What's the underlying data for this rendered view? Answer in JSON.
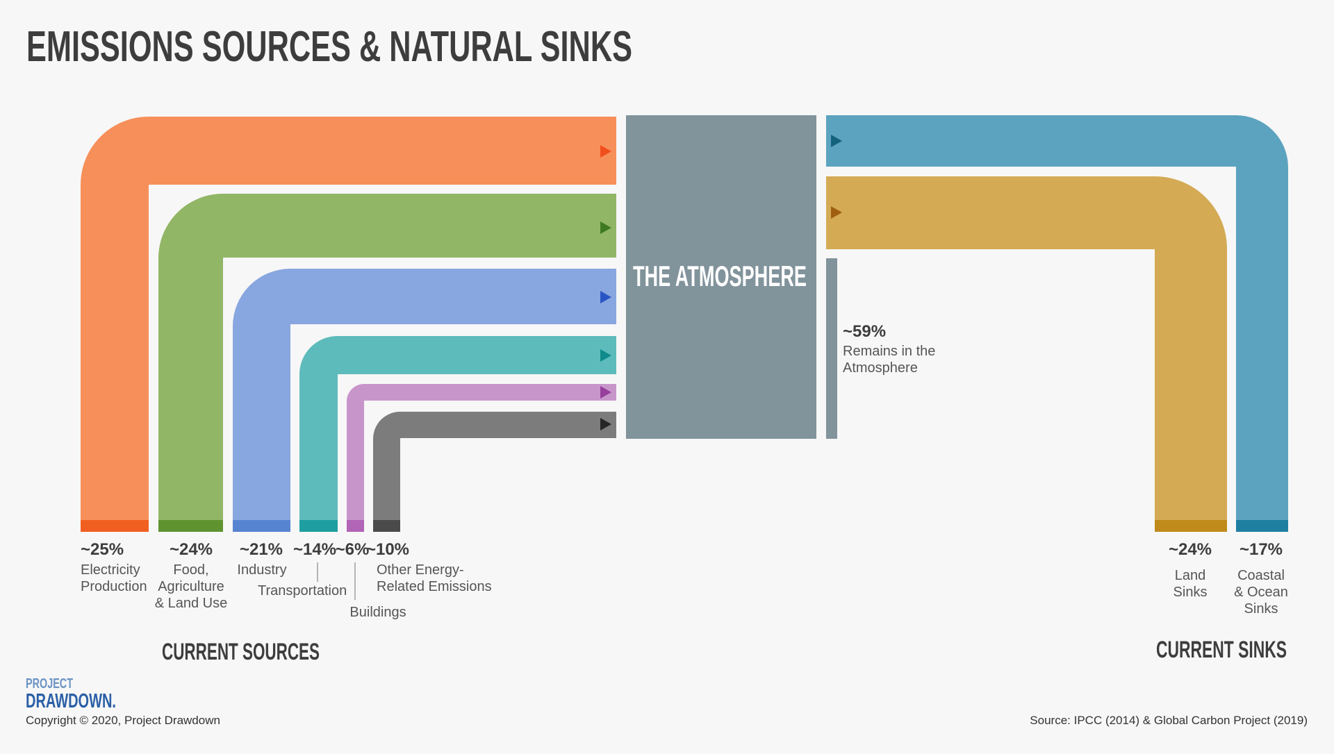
{
  "title": "EMISSIONS SOURCES & NATURAL SINKS",
  "atmosphere": {
    "label": "THE ATMOSPHERE",
    "color": "#81939b"
  },
  "remains": {
    "pct": "~59%",
    "line1": "Remains in the",
    "line2": "Atmosphere",
    "color": "#81939b"
  },
  "sources": [
    {
      "key": "electricity",
      "pct": "~25%",
      "labels": [
        "Electricity",
        "Production"
      ],
      "color": "#f78f5a",
      "base": "#f15f20",
      "arrow": "#f04e1c",
      "share": 25
    },
    {
      "key": "food",
      "pct": "~24%",
      "labels": [
        "Food,",
        "Agriculture",
        "& Land Use"
      ],
      "color": "#91b666",
      "base": "#5f9330",
      "arrow": "#3f7a22",
      "share": 24
    },
    {
      "key": "industry",
      "pct": "~21%",
      "labels": [
        "Industry"
      ],
      "color": "#88a6df",
      "base": "#5784d1",
      "arrow": "#2a55c4",
      "share": 21
    },
    {
      "key": "transportation",
      "pct": "~14%",
      "labels": [
        "Transportation"
      ],
      "color": "#5ebbbb",
      "base": "#1e9ea0",
      "arrow": "#0f8a8a",
      "share": 14
    },
    {
      "key": "buildings",
      "pct": "~6%",
      "labels": [
        "Buildings"
      ],
      "color": "#c895cb",
      "base": "#b264b6",
      "arrow": "#963f9c",
      "share": 6
    },
    {
      "key": "other",
      "pct": "~10%",
      "labels": [
        "Other Energy-",
        "Related Emissions"
      ],
      "color": "#7c7c7c",
      "base": "#4a4a4a",
      "arrow": "#262626",
      "share": 10
    }
  ],
  "sinks": [
    {
      "key": "coastal",
      "pct": "~17%",
      "labels": [
        "Coastal",
        "& Ocean",
        "Sinks"
      ],
      "color": "#5ca3bf",
      "base": "#1f7fa0",
      "arrow": "#14617c",
      "share": 17
    },
    {
      "key": "land",
      "pct": "~24%",
      "labels": [
        "Land",
        "Sinks"
      ],
      "color": "#d4aa55",
      "base": "#c08b1a",
      "arrow": "#a05f10",
      "share": 24
    }
  ],
  "current_sources": "CURRENT SOURCES",
  "current_sinks": "CURRENT SINKS",
  "logo": {
    "line1": "PROJECT",
    "line2": "DRAWDOWN."
  },
  "copyright": "Copyright © 2020, Project Drawdown",
  "source": "Source: IPCC (2014) & Global Carbon Project (2019)"
}
